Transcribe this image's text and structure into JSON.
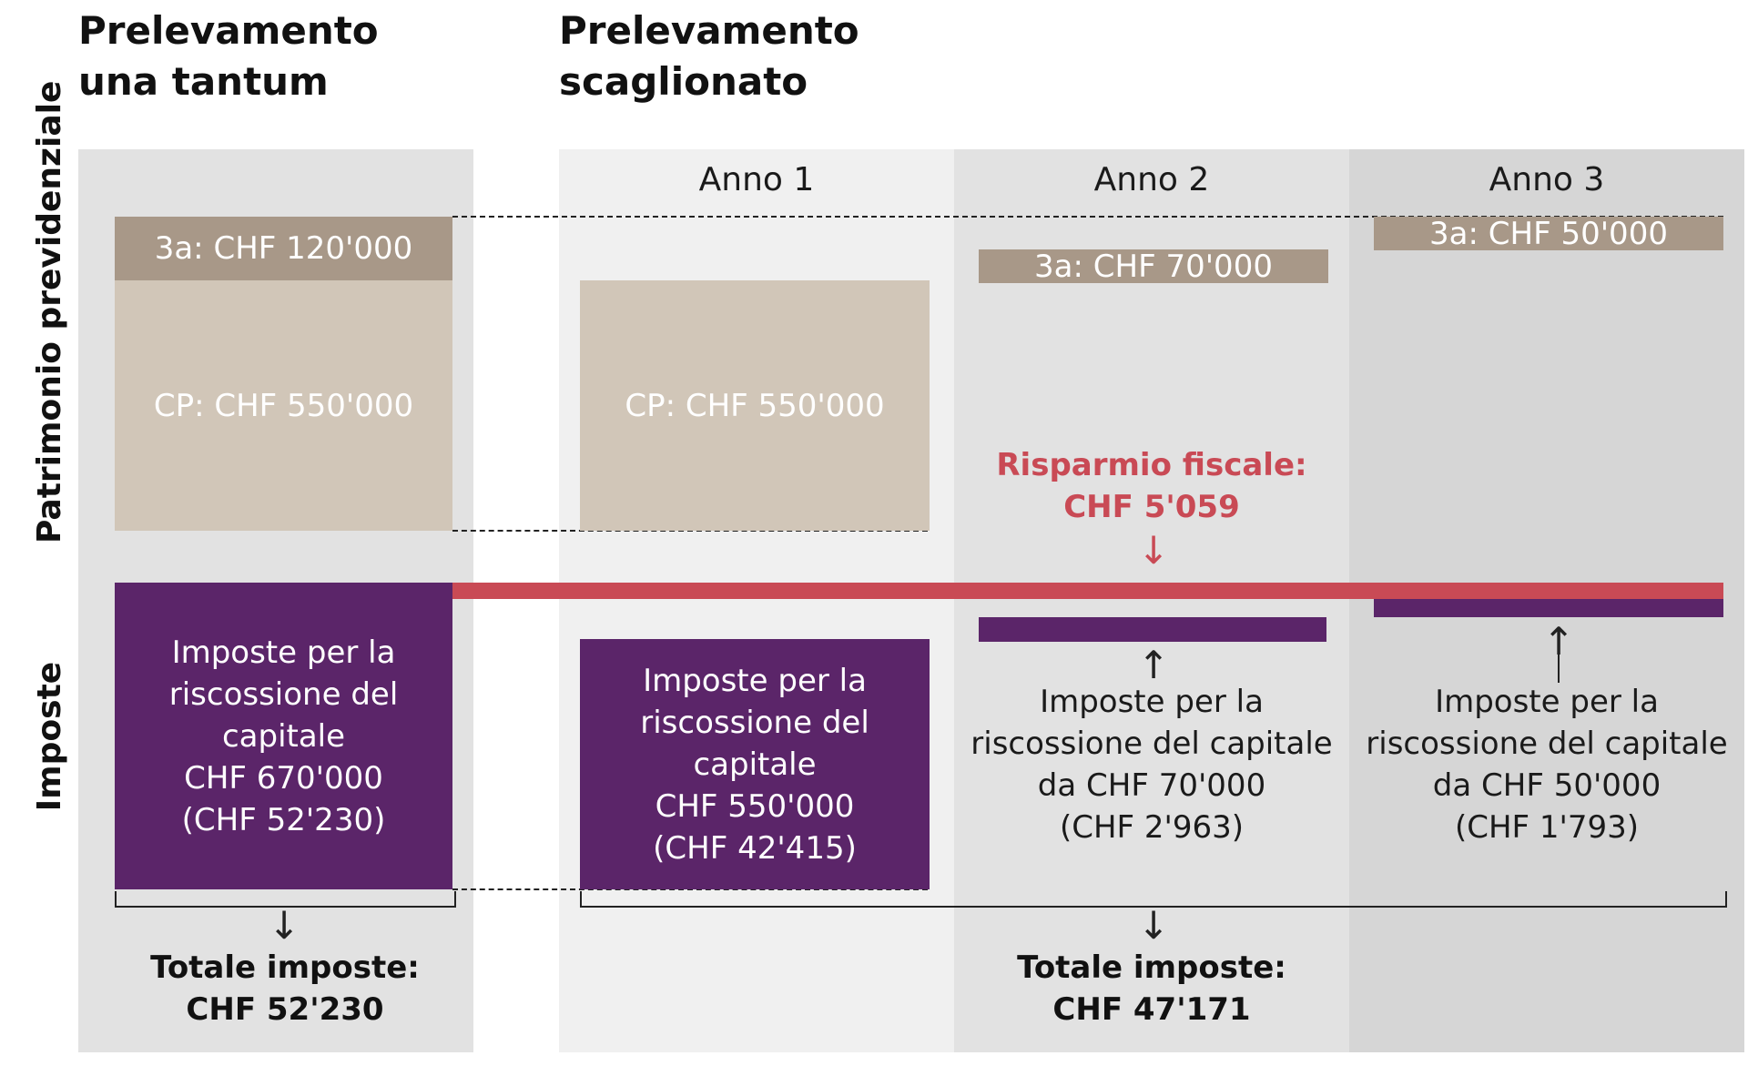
{
  "headings": {
    "lump_sum": [
      "Prelevamento",
      "una tantum"
    ],
    "staggered": [
      "Prelevamento",
      "scaglionato"
    ]
  },
  "side_labels": {
    "assets": "Patrimonio previdenziale",
    "taxes": "Imposte"
  },
  "years": [
    "Anno 1",
    "Anno 2",
    "Anno 3"
  ],
  "lump_sum": {
    "pillar3a": "3a: CHF 120'000",
    "pension_fund": "CP: CHF 550'000",
    "tax_box": [
      "Imposte per la",
      "riscossione del capitale",
      "CHF 670'000",
      "(CHF 52'230)"
    ],
    "total": [
      "Totale imposte:",
      "CHF 52'230"
    ]
  },
  "staggered": {
    "year1": {
      "pension_fund": "CP: CHF 550'000",
      "tax_box": [
        "Imposte per la",
        "riscossione del capitale",
        "CHF 550'000",
        "(CHF 42'415)"
      ]
    },
    "year2": {
      "pillar3a": "3a: CHF 70'000",
      "tax_text": [
        "Imposte per la",
        "riscossione del capitale",
        "da CHF 70'000",
        "(CHF 2'963)"
      ]
    },
    "year3": {
      "pillar3a": "3a: CHF 50'000",
      "tax_text": [
        "Imposte per la",
        "riscossione del capitale",
        "da CHF 50'000",
        "(CHF 1'793)"
      ]
    },
    "total": [
      "Totale imposte:",
      "CHF 47'171"
    ]
  },
  "savings": [
    "Risparmio fiscale:",
    "CHF 5'059"
  ],
  "arrows": {
    "down": "↓",
    "up": "↑"
  },
  "colors": {
    "pillar3a": "#a89888",
    "pension_fund": "#d1c6b8",
    "taxes": "#5b2569",
    "savings": "#c94a55",
    "band_lump": "#e2e2e2",
    "band_year1": "#f0f0f0",
    "band_year2": "#e2e2e2",
    "band_year3": "#d6d6d6"
  }
}
